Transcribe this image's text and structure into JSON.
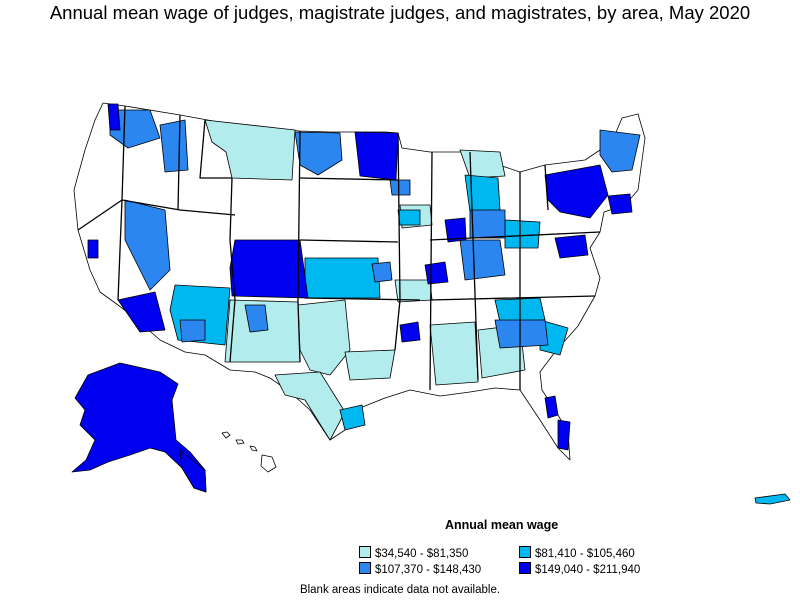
{
  "title": "Annual mean wage of judges, magistrate judges, and magistrates, by area, May 2020",
  "legend": {
    "title": "Annual mean wage",
    "items": [
      {
        "label": "$34,540 - $81,350",
        "color": "#b3ecec"
      },
      {
        "label": "$81,410 - $105,460",
        "color": "#00b8f0"
      },
      {
        "label": "$107,370 - $148,430",
        "color": "#2b86f0"
      },
      {
        "label": "$149,040 - $211,940",
        "color": "#0000f0"
      }
    ]
  },
  "footnote": "Blank areas indicate data not available."
}
